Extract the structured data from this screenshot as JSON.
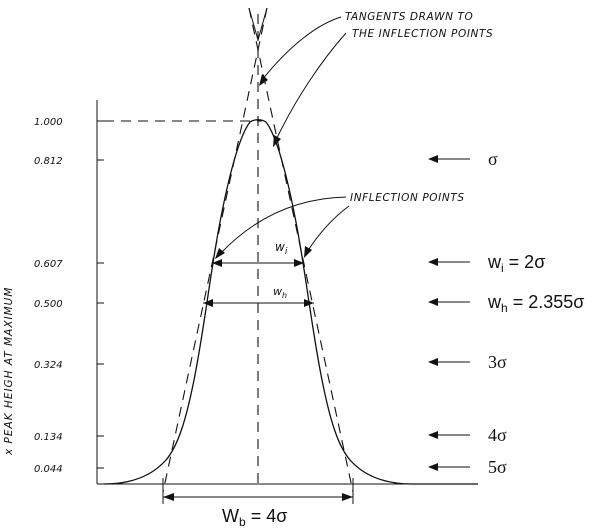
{
  "y_axis_label": "x PEAK HEIGH AT MAXIMUM",
  "y_ticks": [
    "1.000",
    "0.812",
    "0.607",
    "0.500",
    "0.324",
    "0.134",
    "0.044"
  ],
  "annotations": {
    "tangents_line1": "TANGENTS DRAWN TO",
    "tangents_line2": "THE INFLECTION POINTS",
    "inflection_points": "INFLECTION POINTS",
    "wi_label": "w",
    "wi_sub": "i",
    "wh_label": "w",
    "wh_sub": "h"
  },
  "right_labels": {
    "sigma": "σ",
    "wi_main": "w",
    "wi_sub": "i",
    "wi_rest": " = 2σ",
    "wh_main": "w",
    "wh_sub": "h",
    "wh_rest": " = 2.355σ",
    "three_sigma": "3σ",
    "four_sigma": "4σ",
    "five_sigma": "5σ"
  },
  "bottom_label": {
    "main": "W",
    "sub": "b",
    "rest": " = 4σ"
  }
}
